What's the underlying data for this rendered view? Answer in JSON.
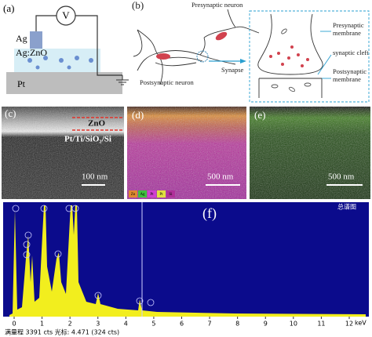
{
  "panels": {
    "a": {
      "label": "(a)",
      "meter": "V",
      "electrode": "Ag",
      "layer": "Ag:ZnO",
      "substrate": "Pt"
    },
    "b": {
      "label": "(b)",
      "presynaptic_neuron": "Presynaptic neuron",
      "postsynaptic_neuron": "Postsynaptic neuron",
      "synapse": "Synapse",
      "presynaptic_membrane": [
        "Presynaptic",
        "membrane"
      ],
      "synaptic_cleft": "synaptic cleft",
      "postsynaptic_membrane": [
        "Postsynaptic",
        "membrane"
      ]
    },
    "c": {
      "label": "(c)",
      "film": "ZnO",
      "stack": "Pt/Ti/SiO₂/Si",
      "scale_bar": "100 nm"
    },
    "d": {
      "label": "(d)",
      "scale_bar": "500 nm",
      "legend": [
        "Zn",
        "Ag",
        "Pt",
        "Pt",
        "Si"
      ]
    },
    "e": {
      "label": "(e)",
      "scale_bar": "500 nm"
    },
    "f": {
      "label": "(f)",
      "spectrum_title": "总谱图",
      "x_ticks": [
        0,
        1,
        2,
        3,
        4,
        5,
        6,
        7,
        8,
        9,
        10,
        11,
        12
      ],
      "x_unit": "keV",
      "status": "满量程 3391 cts 光标: 4.471 (324 cts)"
    }
  }
}
